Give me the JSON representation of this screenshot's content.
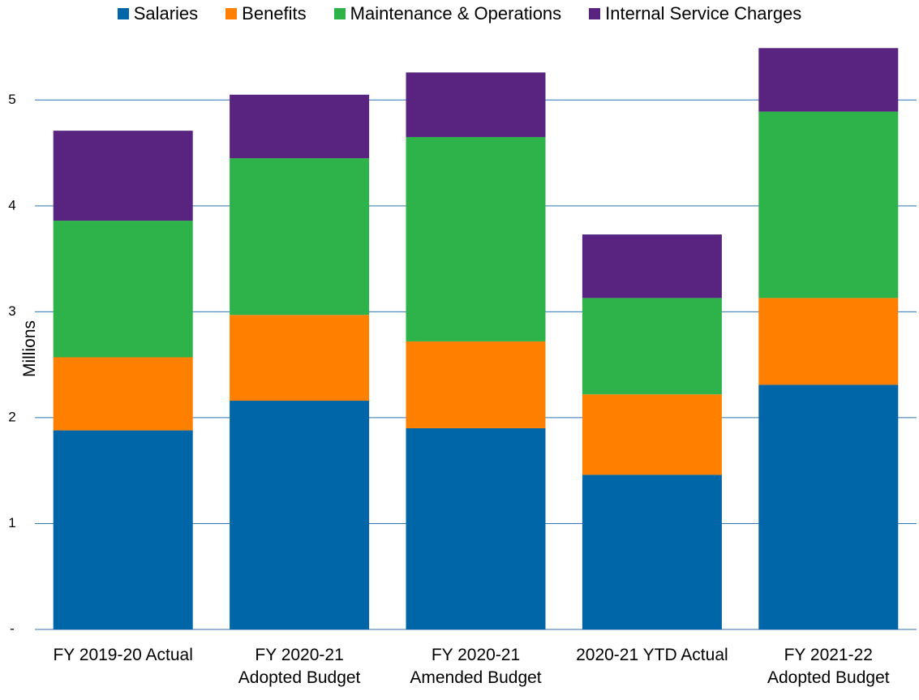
{
  "chart_data": {
    "type": "stacked_bar",
    "y_label": "Millions",
    "categories": [
      "FY 2019-20 Actual",
      "FY 2020-21\nAdopted Budget",
      "FY 2020-21\nAmended Budget",
      "2020-21 YTD Actual",
      "FY 2021-22\nAdopted Budget"
    ],
    "series": [
      {
        "name": "Salaries",
        "color": "#0066a8",
        "values": [
          1.88,
          2.16,
          1.9,
          1.46,
          2.31
        ]
      },
      {
        "name": "Benefits",
        "color": "#ff8000",
        "values": [
          0.69,
          0.81,
          0.82,
          0.76,
          0.82
        ]
      },
      {
        "name": "Maintenance & Operations",
        "color": "#2db34a",
        "values": [
          1.29,
          1.48,
          1.93,
          0.91,
          1.76
        ]
      },
      {
        "name": "Internal Service Charges",
        "color": "#58247f",
        "values": [
          0.85,
          0.6,
          0.61,
          0.6,
          0.6
        ]
      }
    ],
    "ylim": [
      0,
      5.5
    ],
    "yticks": [
      {
        "value": 0,
        "label": "-"
      },
      1,
      2,
      3,
      4,
      5
    ],
    "grid": true,
    "legend": "top"
  }
}
